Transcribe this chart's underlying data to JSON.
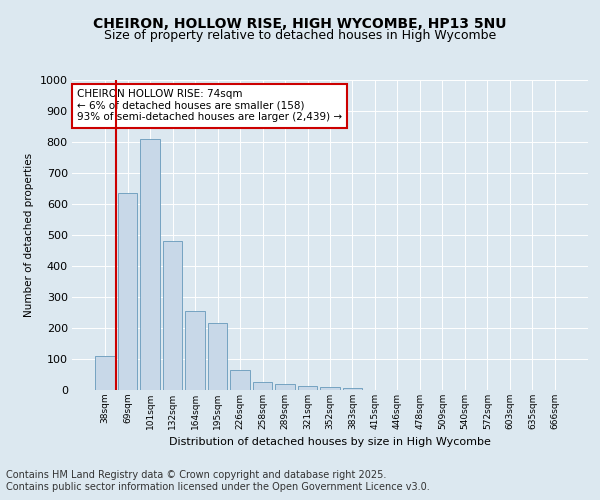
{
  "title_line1": "CHEIRON, HOLLOW RISE, HIGH WYCOMBE, HP13 5NU",
  "title_line2": "Size of property relative to detached houses in High Wycombe",
  "xlabel": "Distribution of detached houses by size in High Wycombe",
  "ylabel": "Number of detached properties",
  "categories": [
    "38sqm",
    "69sqm",
    "101sqm",
    "132sqm",
    "164sqm",
    "195sqm",
    "226sqm",
    "258sqm",
    "289sqm",
    "321sqm",
    "352sqm",
    "383sqm",
    "415sqm",
    "446sqm",
    "478sqm",
    "509sqm",
    "540sqm",
    "572sqm",
    "603sqm",
    "635sqm",
    "666sqm"
  ],
  "values": [
    110,
    635,
    810,
    480,
    255,
    215,
    65,
    25,
    20,
    12,
    9,
    6,
    1,
    0,
    0,
    0,
    0,
    0,
    0,
    0,
    0
  ],
  "bar_color": "#c8d8e8",
  "bar_edge_color": "#6699bb",
  "highlight_line_color": "#cc0000",
  "annotation_text": "CHEIRON HOLLOW RISE: 74sqm\n← 6% of detached houses are smaller (158)\n93% of semi-detached houses are larger (2,439) →",
  "annotation_box_color": "#ffffff",
  "annotation_box_edge": "#cc0000",
  "ylim": [
    0,
    1000
  ],
  "yticks": [
    0,
    100,
    200,
    300,
    400,
    500,
    600,
    700,
    800,
    900,
    1000
  ],
  "background_color": "#dce8f0",
  "plot_bg_color": "#dce8f0",
  "footer_line1": "Contains HM Land Registry data © Crown copyright and database right 2025.",
  "footer_line2": "Contains public sector information licensed under the Open Government Licence v3.0.",
  "title_fontsize": 10,
  "subtitle_fontsize": 9,
  "footer_fontsize": 7,
  "annotation_fontsize": 7.5
}
